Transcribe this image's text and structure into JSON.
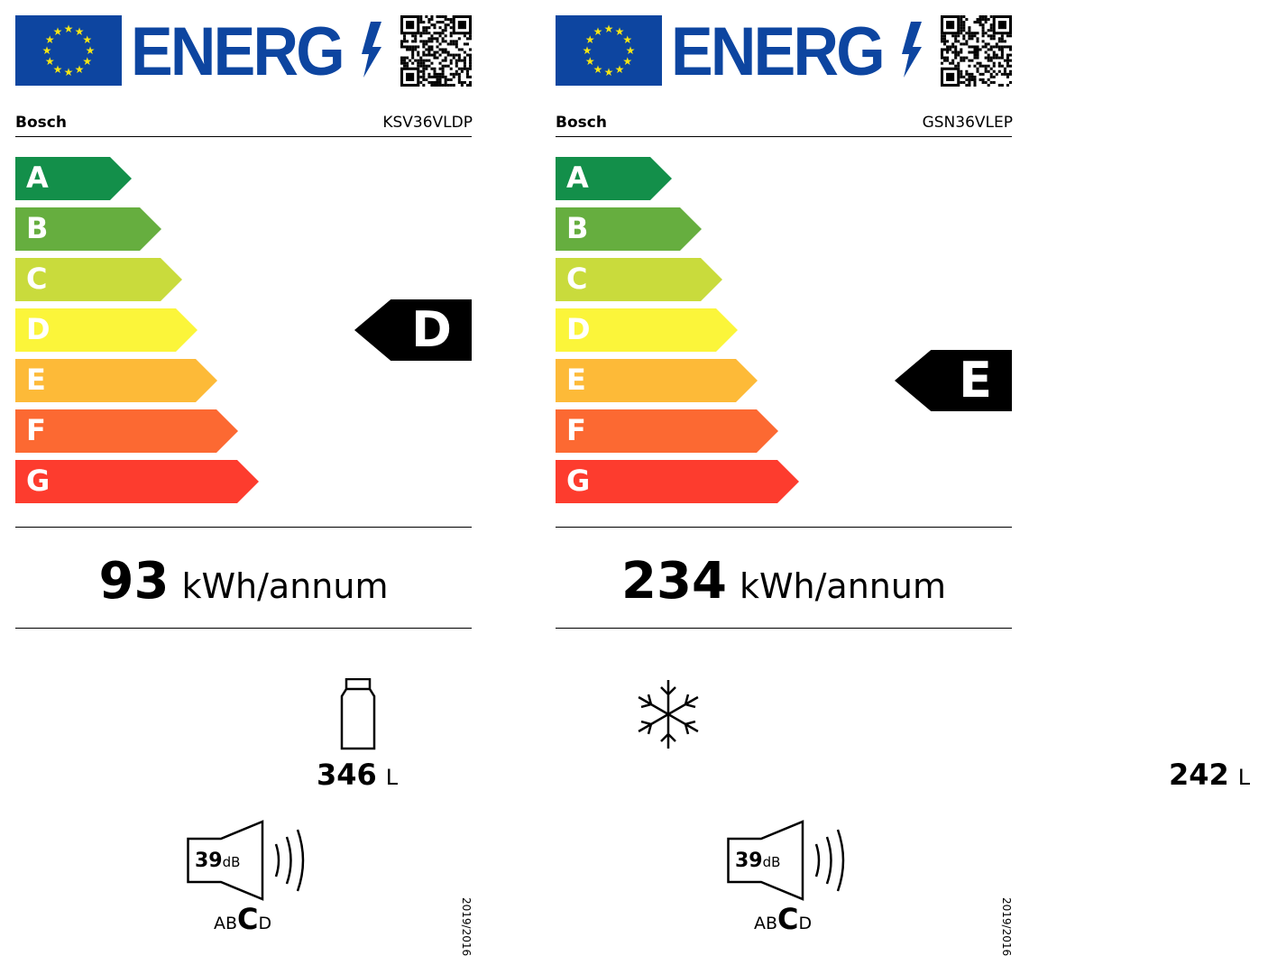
{
  "colors": {
    "eu_blue": "#0d45a0",
    "stars": "#f5e615",
    "A": "#138f4a",
    "B": "#66ae3f",
    "C": "#c9db3c",
    "D": "#fbf53a",
    "E": "#fdba38",
    "F": "#fc6932",
    "G": "#fd3c2e"
  },
  "scale": [
    "A",
    "B",
    "C",
    "D",
    "E",
    "F",
    "G"
  ],
  "labels": [
    {
      "logo_text": "ENERG",
      "brand": "Bosch",
      "model": "KSV36VLDP",
      "rating": "D",
      "energy_value": "93",
      "energy_unit": "kWh/annum",
      "compartment_icon": "fridge-icon",
      "volume": "346",
      "volume_unit": "L",
      "noise_value": "39",
      "noise_unit": "dB",
      "noise_classes": [
        "A",
        "B",
        "C",
        "D"
      ],
      "noise_class": "C",
      "regulation": "2019/2016"
    },
    {
      "logo_text": "ENERG",
      "brand": "Bosch",
      "model": "GSN36VLEP",
      "rating": "E",
      "energy_value": "234",
      "energy_unit": "kWh/annum",
      "compartment_icon": "snowflake-icon",
      "volume": "242",
      "volume_unit": "L",
      "noise_value": "39",
      "noise_unit": "dB",
      "noise_classes": [
        "A",
        "B",
        "C",
        "D"
      ],
      "noise_class": "C",
      "regulation": "2019/2016"
    }
  ]
}
